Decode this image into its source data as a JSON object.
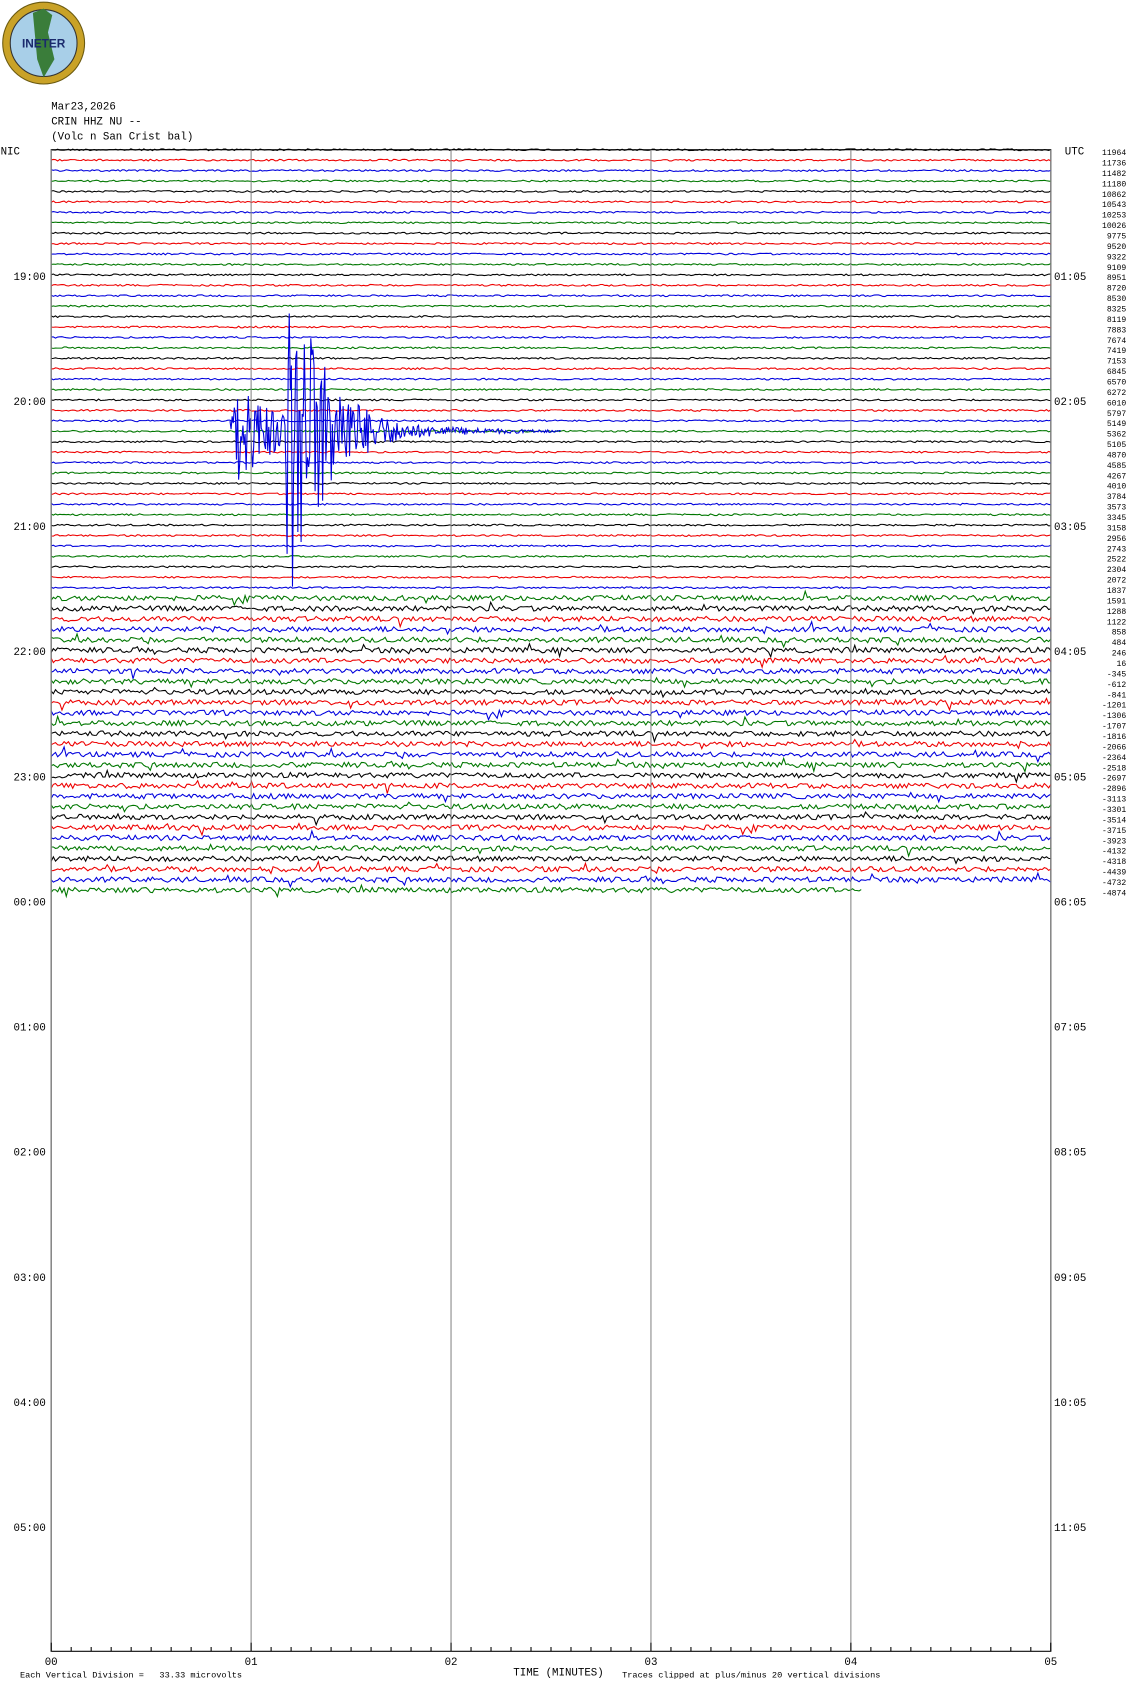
{
  "header": {
    "logo": "INETER",
    "date": "Mar23,2026",
    "station": "CRIN HHZ NU --",
    "location": "(Volc n San Crist bal)"
  },
  "left_labels": [
    "NIC",
    "19:00",
    "20:00",
    "21:00",
    "22:00",
    "23:00",
    "00:00",
    "01:00",
    "02:00",
    "03:00",
    "04:00",
    "05:00"
  ],
  "right_labels": [
    "UTC",
    "01:05",
    "02:05",
    "03:05",
    "04:05",
    "05:05",
    "06:05",
    "07:05",
    "08:05",
    "09:05",
    "10:05",
    "11:05"
  ],
  "row_values": [
    "11964",
    "11736",
    "11482",
    "11180",
    "10862",
    "10543",
    "10253",
    "10026",
    "9775",
    "9520",
    "9322",
    "9109",
    "8951",
    "8720",
    "8530",
    "8325",
    "8119",
    "7883",
    "7674",
    "7419",
    "7153",
    "6845",
    "6570",
    "6272",
    "6010",
    "5797",
    "5149",
    "5362",
    "5105",
    "4870",
    "4585",
    "4267",
    "4010",
    "3784",
    "3573",
    "3345",
    "3158",
    "2956",
    "2743",
    "2522",
    "2304",
    "2072",
    "1837",
    "1591",
    "1288",
    "1122",
    "858",
    "484",
    "246",
    "16",
    "-345",
    "-612",
    "-841",
    "-1201",
    "-1306",
    "-1707",
    "-1816",
    "-2066",
    "-2364",
    "-2518",
    "-2697",
    "-2896",
    "-3113",
    "-3301",
    "-3514",
    "-3715",
    "-3923",
    "-4132",
    "-4318",
    "-4439",
    "-4732",
    "-4874"
  ],
  "x_axis": {
    "ticks": [
      "00",
      "01",
      "02",
      "03",
      "04",
      "05"
    ],
    "title": "TIME (MINUTES)"
  },
  "footer": {
    "division": "Each Vertical Division =   33.33 microvolts",
    "clipped": "Traces clipped at plus/minus 20 vertical divisions"
  }
}
